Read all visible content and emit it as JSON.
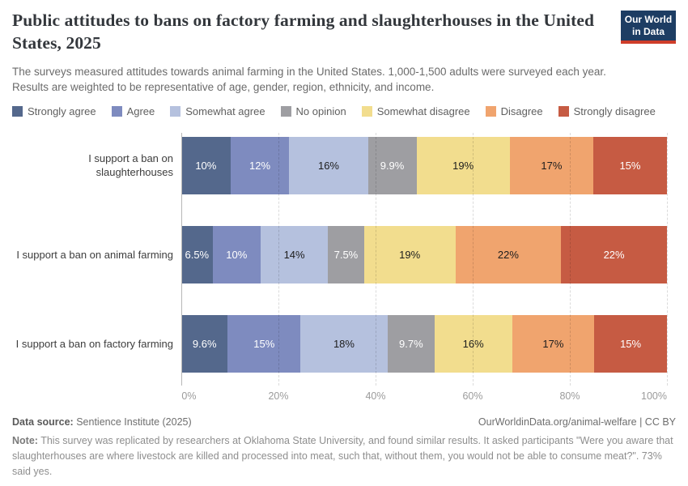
{
  "header": {
    "title": "Public attitudes to bans on factory farming and slaughterhouses in the United States, 2025",
    "subtitle_lines": [
      "The surveys measured attitudes towards animal farming in the United States. 1,000-1,500 adults were surveyed each year.",
      "Results are weighted to be representative of age, gender, region, ethnicity, and income."
    ],
    "logo_line1": "Our World",
    "logo_line2": "in Data",
    "logo_bg_color": "#1d3d63",
    "logo_accent_color": "#cf3d2a"
  },
  "chart_data": {
    "type": "bar",
    "orientation": "horizontal",
    "stacked": true,
    "stacked_to_100_percent": true,
    "categories": [
      "I support a ban on slaughterhouses",
      "I support a ban on animal farming",
      "I support a ban on factory farming"
    ],
    "series": [
      {
        "name": "Strongly agree",
        "color": "#54688C",
        "values": [
          10,
          6.5,
          9.6
        ],
        "labels": [
          "10%",
          "6.5%",
          "9.6%"
        ],
        "label_text_color": "#ffffff"
      },
      {
        "name": "Agree",
        "color": "#7E8BBF",
        "values": [
          12,
          10,
          15
        ],
        "labels": [
          "12%",
          "10%",
          "15%"
        ],
        "label_text_color": "#ffffff"
      },
      {
        "name": "Somewhat agree",
        "color": "#B5C1DE",
        "values": [
          16,
          14,
          18
        ],
        "labels": [
          "16%",
          "14%",
          "18%"
        ],
        "label_text_color": "#1d1d1d"
      },
      {
        "name": "No opinion",
        "color": "#9E9EA2",
        "values": [
          9.9,
          7.5,
          9.7
        ],
        "labels": [
          "9.9%",
          "7.5%",
          "9.7%"
        ],
        "label_text_color": "#ffffff"
      },
      {
        "name": "Somewhat disagree",
        "color": "#F2DD8E",
        "values": [
          19,
          19,
          16
        ],
        "labels": [
          "19%",
          "19%",
          "16%"
        ],
        "label_text_color": "#1d1d1d"
      },
      {
        "name": "Disagree",
        "color": "#F0A46E",
        "values": [
          17,
          22,
          17
        ],
        "labels": [
          "17%",
          "22%",
          "17%"
        ],
        "label_text_color": "#1d1d1d"
      },
      {
        "name": "Strongly disagree",
        "color": "#C65B43",
        "values": [
          15,
          22,
          15
        ],
        "labels": [
          "15%",
          "22%",
          "15%"
        ],
        "label_text_color": "#ffffff"
      }
    ],
    "x_ticks": [
      0,
      20,
      40,
      60,
      80,
      100
    ],
    "x_tick_labels": [
      "0%",
      "20%",
      "40%",
      "60%",
      "80%",
      "100%"
    ],
    "xlim": [
      0,
      100
    ],
    "grid": true,
    "legend_position": "top",
    "title": "Public attitudes to bans on factory farming and slaughterhouses in the United States, 2025"
  },
  "footer": {
    "datasource_label": "Data source:",
    "datasource_value": " Sentience Institute (2025)",
    "attribution": "OurWorldinData.org/animal-welfare | CC BY",
    "note_label": "Note:",
    "note_text": " This survey was replicated by researchers at Oklahoma State University, and found similar results. It asked participants \"Were you aware that slaughterhouses are where livestock are killed and processed into meat, such that, without them, you would not be able to consume meat?\". 73% said yes."
  }
}
